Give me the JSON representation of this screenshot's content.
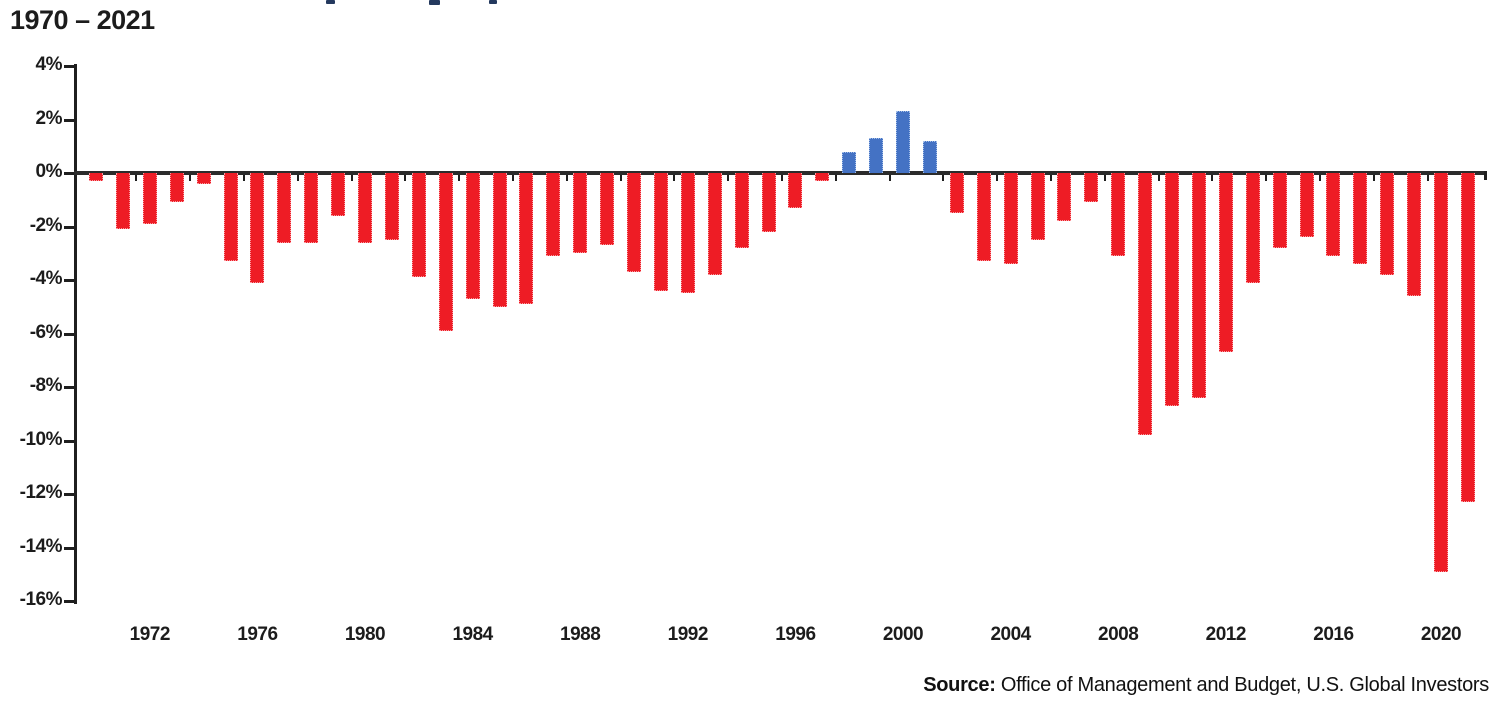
{
  "title": "1970 – 2021",
  "source": {
    "label": "Source:",
    "text": " Office of Management and Budget, U.S. Global Investors"
  },
  "chart_data": {
    "type": "bar",
    "title": "1970 – 2021",
    "xlabel": "",
    "ylabel": "",
    "ylim": [
      -16,
      4
    ],
    "grid": false,
    "legend": false,
    "y_tick_values": [
      4,
      2,
      0,
      -2,
      -4,
      -6,
      -8,
      -10,
      -12,
      -14,
      -16
    ],
    "y_tick_labels": [
      "4%",
      "2%",
      "0%",
      "-2%",
      "-4%",
      "-6%",
      "-8%",
      "-10%",
      "-12%",
      "-14%",
      "-16%"
    ],
    "x_tick_labels": [
      "1972",
      "1976",
      "1980",
      "1984",
      "1988",
      "1992",
      "1996",
      "2000",
      "2004",
      "2008",
      "2012",
      "2016",
      "2020"
    ],
    "x": [
      1970,
      1971,
      1972,
      1973,
      1974,
      1975,
      1976,
      1977,
      1978,
      1979,
      1980,
      1981,
      1982,
      1983,
      1984,
      1985,
      1986,
      1987,
      1988,
      1989,
      1990,
      1991,
      1992,
      1993,
      1994,
      1995,
      1996,
      1997,
      1998,
      1999,
      2000,
      2001,
      2002,
      2003,
      2004,
      2005,
      2006,
      2007,
      2008,
      2009,
      2010,
      2011,
      2012,
      2013,
      2014,
      2015,
      2016,
      2017,
      2018,
      2019,
      2020,
      2021
    ],
    "values": [
      -0.3,
      -2.1,
      -1.9,
      -1.1,
      -0.4,
      -3.3,
      -4.1,
      -2.6,
      -2.6,
      -1.6,
      -2.6,
      -2.5,
      -3.9,
      -5.9,
      -4.7,
      -5.0,
      -4.9,
      -3.1,
      -3.0,
      -2.7,
      -3.7,
      -4.4,
      -4.5,
      -3.8,
      -2.8,
      -2.2,
      -1.3,
      -0.3,
      0.8,
      1.3,
      2.3,
      1.2,
      -1.5,
      -3.3,
      -3.4,
      -2.5,
      -1.8,
      -1.1,
      -3.1,
      -9.8,
      -8.7,
      -8.4,
      -6.7,
      -4.1,
      -2.8,
      -2.4,
      -3.1,
      -3.4,
      -3.8,
      -4.6,
      -14.9,
      -12.3
    ],
    "colors": {
      "deficit_bar": "#ee1c25",
      "deficit_bar_edge": "#fb9aa0",
      "surplus_bar": "#4472c4",
      "surplus_bar_edge": "#a3bee8",
      "axis": "#1f1f1f",
      "text": "#1c1c1c"
    }
  }
}
